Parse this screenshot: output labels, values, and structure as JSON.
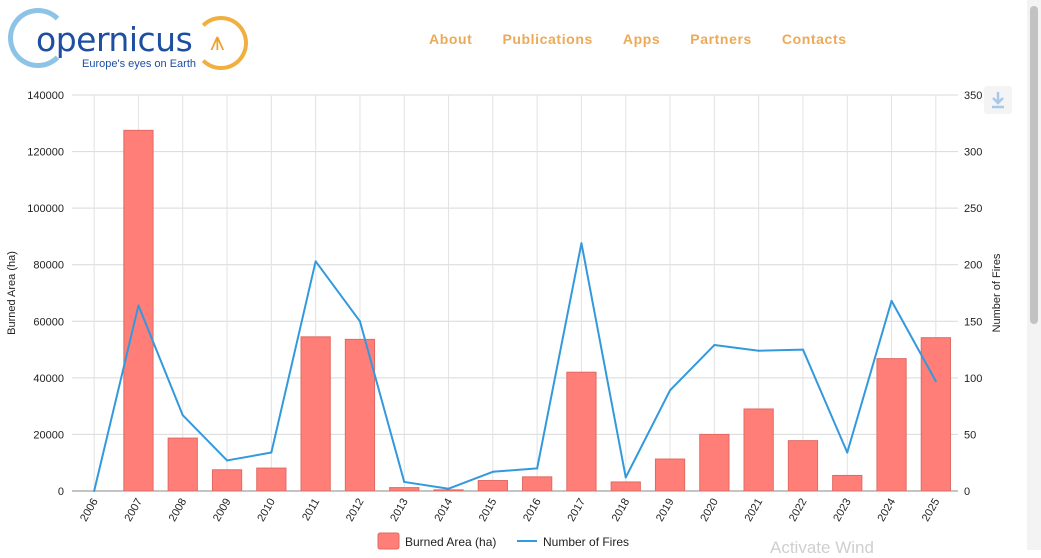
{
  "header": {
    "logo": {
      "name": "opernicus",
      "tagline": "Europe's eyes on Earth"
    },
    "nav": [
      {
        "label": "About"
      },
      {
        "label": "Publications"
      },
      {
        "label": "Apps"
      },
      {
        "label": "Partners"
      },
      {
        "label": "Contacts"
      }
    ]
  },
  "watermark": "Activate Wind",
  "icons": {
    "download": "download-icon"
  },
  "colors": {
    "bar": "#ff7f78",
    "bar_border": "#e06a63",
    "line": "#3399dd",
    "nav": "#ecaa58",
    "brand": "#1e4ea0"
  },
  "chart_data": {
    "type": "bar",
    "categories": [
      "2006",
      "2007",
      "2008",
      "2009",
      "2010",
      "2011",
      "2012",
      "2013",
      "2014",
      "2015",
      "2016",
      "2017",
      "2018",
      "2019",
      "2020",
      "2021",
      "2022",
      "2023",
      "2024",
      "2025"
    ],
    "series": [
      {
        "name": "Burned Area (ha)",
        "type": "bar",
        "axis": "left",
        "values": [
          0,
          127500,
          18700,
          7500,
          8100,
          54500,
          53600,
          1200,
          400,
          3700,
          5000,
          42000,
          3200,
          11300,
          20000,
          29000,
          17800,
          5500,
          46800,
          54200
        ]
      },
      {
        "name": "Number of Fires",
        "type": "line",
        "axis": "right",
        "values": [
          0,
          164,
          67,
          27,
          34,
          203,
          150,
          8,
          2,
          17,
          20,
          219,
          12,
          89,
          129,
          124,
          125,
          34,
          168,
          97
        ]
      }
    ],
    "ylabel": "Burned Area (ha)",
    "y2label": "Number of Fires",
    "ylim": [
      0,
      140000
    ],
    "y2lim": [
      0,
      350
    ],
    "yticks": [
      "0",
      "20000",
      "40000",
      "60000",
      "80000",
      "100000",
      "120000",
      "140000"
    ],
    "y2ticks": [
      "0",
      "50",
      "100",
      "150",
      "200",
      "250",
      "300",
      "350"
    ],
    "grid": true,
    "legend": "bottom"
  }
}
